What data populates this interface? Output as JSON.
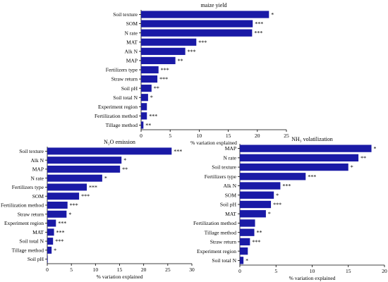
{
  "bar_color": "#1a1aa6",
  "chart_data": [
    {
      "type": "bar",
      "orientation": "horizontal",
      "title": "maize yield",
      "xlabel": "% variation explained",
      "xlim": [
        0,
        25
      ],
      "xticks": [
        "0",
        "5",
        "10",
        "15",
        "20",
        "25"
      ],
      "categories": [
        "Soil texture",
        "SOM",
        "N rate",
        "MAT",
        "Alk N",
        "MAP",
        "Fertilizers type",
        "Straw return",
        "Soil pH",
        "Soil total N",
        "Experiment region",
        "Fertilization method",
        "Tillage method"
      ],
      "values": [
        22.0,
        19.2,
        19.1,
        9.5,
        7.6,
        5.9,
        3.0,
        2.8,
        1.8,
        1.2,
        1.0,
        1.0,
        0.4
      ],
      "significance": [
        "*",
        "***",
        "***",
        "***",
        "***",
        "**",
        "***",
        "***",
        "**",
        "*",
        "",
        "***",
        "**"
      ]
    },
    {
      "type": "bar",
      "orientation": "horizontal",
      "title": "N₂O emission",
      "xlabel": "% variation explained",
      "xlim": [
        0,
        30
      ],
      "xticks": [
        "0",
        "5",
        "10",
        "15",
        "20",
        "25",
        "30"
      ],
      "categories": [
        "Soil texture",
        "Alk N",
        "MAP",
        "N rate",
        "Fertilizers type",
        "SOM",
        "Fertilization method",
        "Straw return",
        "Experiment region",
        "MAT",
        "Soil total N",
        "Tillage method",
        "Soil pH"
      ],
      "values": [
        25.8,
        15.4,
        15.1,
        11.4,
        8.2,
        6.6,
        4.2,
        4.0,
        1.8,
        1.4,
        1.2,
        0.9,
        0.1
      ],
      "significance": [
        "***",
        "*",
        "**",
        "*",
        "***",
        "***",
        "***",
        "*",
        "***",
        "***",
        "***",
        "*",
        ""
      ]
    },
    {
      "type": "bar",
      "orientation": "horizontal",
      "title": "NH₃ volatilization",
      "xlabel": "% variation explained",
      "xlim": [
        0,
        20
      ],
      "xticks": [
        "0",
        "5",
        "10",
        "15",
        "20"
      ],
      "categories": [
        "MAP",
        "N rate",
        "Soil texture",
        "Fertilizers type",
        "Alk N",
        "SOM",
        "Soil pH",
        "MAT",
        "Fertilization method",
        "Tillage method",
        "Straw return",
        "Experiment region",
        "Soil total N"
      ],
      "values": [
        18.2,
        16.4,
        15.0,
        9.1,
        5.6,
        4.7,
        4.3,
        3.6,
        2.1,
        2.0,
        1.4,
        1.1,
        0.5
      ],
      "significance": [
        "*",
        "**",
        "*",
        "***",
        "***",
        "*",
        "***",
        "*",
        "",
        "**",
        "***",
        "",
        "*"
      ]
    }
  ]
}
